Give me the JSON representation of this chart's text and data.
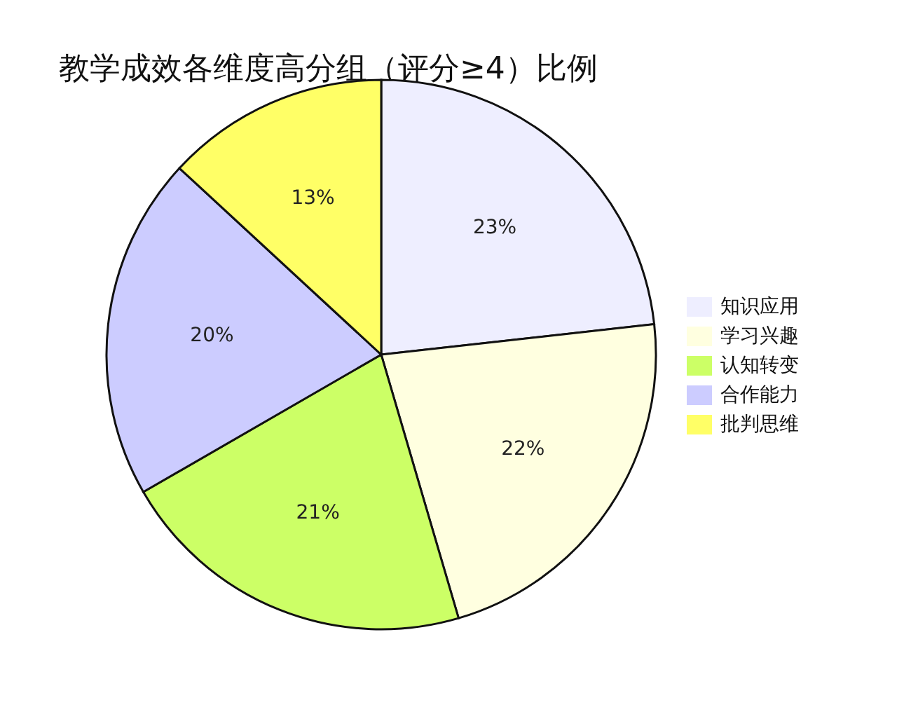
{
  "chart_data": {
    "type": "pie",
    "title": "教学成效各维度高分组（评分≥4）比例",
    "categories": [
      "知识应用",
      "学习兴趣",
      "认知转变",
      "合作能力",
      "批判思维"
    ],
    "values": [
      23,
      22,
      21,
      20,
      13
    ],
    "value_labels": [
      "23%",
      "22%",
      "21%",
      "20%",
      "13%"
    ],
    "colors": [
      "#eeeeff",
      "#ffffe0",
      "#ccff66",
      "#ccccff",
      "#ffff66"
    ],
    "legend": "right"
  }
}
